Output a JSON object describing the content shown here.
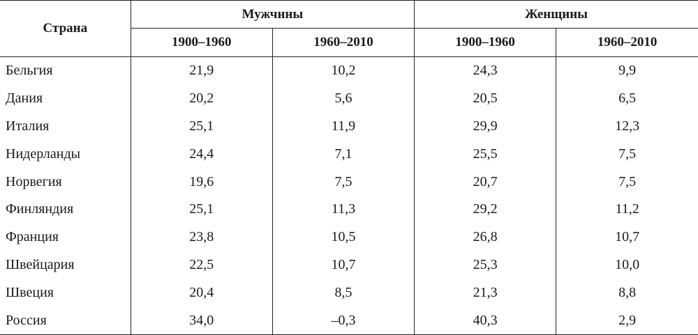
{
  "table": {
    "country_header": "Страна",
    "groups": [
      {
        "label": "Мужчины",
        "periods": [
          "1900–1960",
          "1960–2010"
        ]
      },
      {
        "label": "Женщины",
        "periods": [
          "1900–1960",
          "1960–2010"
        ]
      }
    ],
    "rows": [
      {
        "country": "Бельгия",
        "values": [
          "21,9",
          "10,2",
          "24,3",
          "9,9"
        ]
      },
      {
        "country": "Дания",
        "values": [
          "20,2",
          "5,6",
          "20,5",
          "6,5"
        ]
      },
      {
        "country": "Италия",
        "values": [
          "25,1",
          "11,9",
          "29,9",
          "12,3"
        ]
      },
      {
        "country": "Нидерланды",
        "values": [
          "24,4",
          "7,1",
          "25,5",
          "7,5"
        ]
      },
      {
        "country": "Норвегия",
        "values": [
          "19,6",
          "7,5",
          "20,7",
          "7,5"
        ]
      },
      {
        "country": "Финляндия",
        "values": [
          "25,1",
          "11,3",
          "29,2",
          "11,2"
        ]
      },
      {
        "country": "Франция",
        "values": [
          "23,8",
          "10,5",
          "26,8",
          "10,7"
        ]
      },
      {
        "country": "Швейцария",
        "values": [
          "22,5",
          "10,7",
          "25,3",
          "10,0"
        ]
      },
      {
        "country": "Швеция",
        "values": [
          "20,4",
          "8,5",
          "21,3",
          "8,8"
        ]
      },
      {
        "country": "Россия",
        "values": [
          "34,0",
          "–0,3",
          "40,3",
          "2,9"
        ]
      }
    ]
  }
}
